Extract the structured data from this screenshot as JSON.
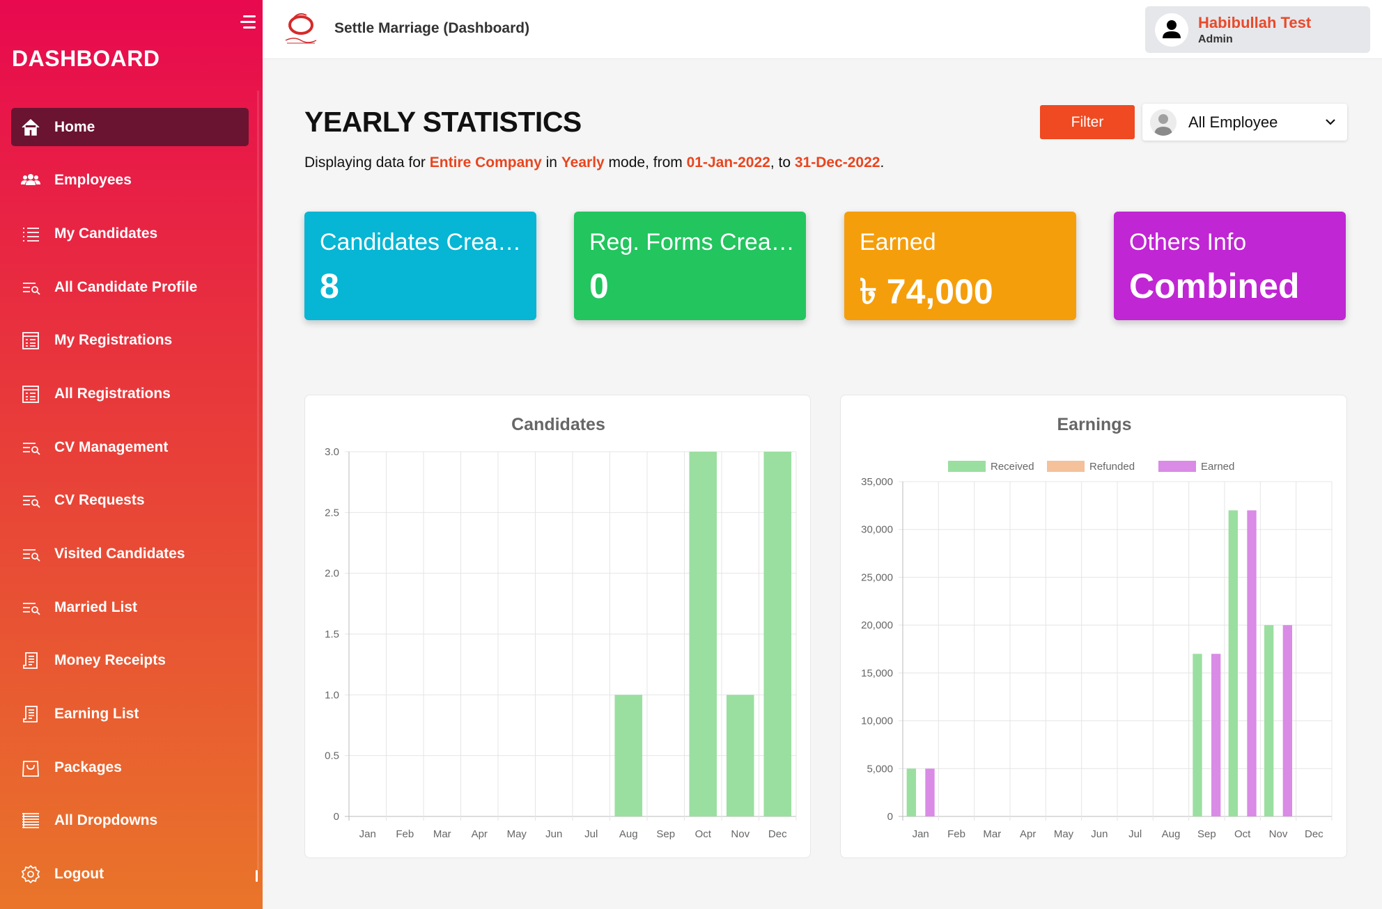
{
  "sidebar": {
    "title": "DASHBOARD",
    "items": [
      {
        "label": "Home",
        "icon": "home-icon",
        "active": true
      },
      {
        "label": "Employees",
        "icon": "users-icon"
      },
      {
        "label": "My Candidates",
        "icon": "list-icon"
      },
      {
        "label": "All Candidate Profile",
        "icon": "list-search-icon"
      },
      {
        "label": "My Registrations",
        "icon": "form-icon"
      },
      {
        "label": "All Registrations",
        "icon": "form-icon"
      },
      {
        "label": "CV Management",
        "icon": "list-search-icon"
      },
      {
        "label": "CV Requests",
        "icon": "list-search-icon"
      },
      {
        "label": "Visited Candidates",
        "icon": "list-search-icon"
      },
      {
        "label": "Married List",
        "icon": "list-search-icon"
      },
      {
        "label": "Money Receipts",
        "icon": "receipt-icon"
      },
      {
        "label": "Earning List",
        "icon": "receipt-icon"
      },
      {
        "label": "Packages",
        "icon": "bag-icon"
      },
      {
        "label": "All Dropdowns",
        "icon": "lines-icon"
      },
      {
        "label": "Logout",
        "icon": "logout-icon"
      }
    ]
  },
  "header": {
    "app_title": "Settle Marriage (Dashboard)",
    "user_name": "Habibullah Test",
    "user_role": "Admin"
  },
  "main": {
    "title": "YEARLY STATISTICS",
    "subtitle": {
      "prefix": "Displaying data for ",
      "scope": "Entire Company",
      "in": " in ",
      "mode": "Yearly",
      "mode_suffix": " mode, from ",
      "from": "01-Jan-2022",
      "to_text": ", to ",
      "to": "31-Dec-2022",
      "end": "."
    },
    "filter_label": "Filter",
    "employee_select": "All Employee",
    "cards": [
      {
        "title": "Candidates Created",
        "value": "8",
        "color": "#06b6d4"
      },
      {
        "title": "Reg. Forms Created",
        "value": "0",
        "color": "#22c55e"
      },
      {
        "title": "Earned",
        "value": "৳ 74,000",
        "color": "#f59e0b"
      },
      {
        "title": "Others Info",
        "value": "Combined",
        "color": "#c026d3"
      }
    ]
  },
  "chart_data": [
    {
      "type": "bar",
      "title": "Candidates",
      "categories": [
        "Jan",
        "Feb",
        "Mar",
        "Apr",
        "May",
        "Jun",
        "Jul",
        "Aug",
        "Sep",
        "Oct",
        "Nov",
        "Dec"
      ],
      "series": [
        {
          "values": [
            0,
            0,
            0,
            0,
            0,
            0,
            0,
            1,
            0,
            3,
            1,
            3
          ],
          "color": "#9adfa0"
        }
      ],
      "ylim": [
        0,
        3
      ],
      "yticks": [
        "0",
        "0.5",
        "1.0",
        "1.5",
        "2.0",
        "2.5",
        "3.0"
      ],
      "grid": true
    },
    {
      "type": "bar",
      "title": "Earnings",
      "categories": [
        "Jan",
        "Feb",
        "Mar",
        "Apr",
        "May",
        "Jun",
        "Jul",
        "Aug",
        "Sep",
        "Oct",
        "Nov",
        "Dec"
      ],
      "series": [
        {
          "name": "Received",
          "values": [
            5000,
            0,
            0,
            0,
            0,
            0,
            0,
            0,
            17000,
            32000,
            20000,
            0
          ],
          "color": "#9adfa0"
        },
        {
          "name": "Refunded",
          "values": [
            0,
            0,
            0,
            0,
            0,
            0,
            0,
            0,
            0,
            0,
            0,
            0
          ],
          "color": "#f4c19b"
        },
        {
          "name": "Earned",
          "values": [
            5000,
            0,
            0,
            0,
            0,
            0,
            0,
            0,
            17000,
            32000,
            20000,
            0
          ],
          "color": "#d98be6"
        }
      ],
      "ylim": [
        0,
        35000
      ],
      "yticks": [
        "0",
        "5,000",
        "10,000",
        "15,000",
        "20,000",
        "25,000",
        "30,000",
        "35,000"
      ],
      "legend": "top",
      "grid": true
    }
  ]
}
